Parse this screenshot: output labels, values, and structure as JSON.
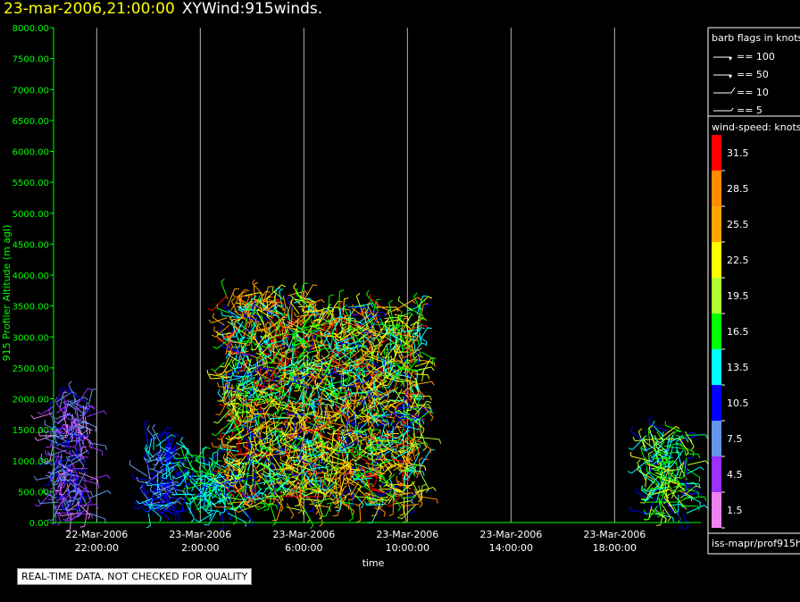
{
  "header": {
    "datetime": "23-mar-2006,21:00:00",
    "product": "XYWind:915winds."
  },
  "disclaimer": "REAL-TIME DATA, NOT CHECKED FOR QUALITY",
  "legend": {
    "barb_title": "barb flags in knots",
    "barbs": [
      {
        "label": "== 100",
        "kind": "flag"
      },
      {
        "label": "== 50",
        "kind": "flag"
      },
      {
        "label": "== 10",
        "kind": "full"
      },
      {
        "label": "== 5",
        "kind": "half"
      }
    ],
    "speed_title": "wind-speed: knots",
    "source": "iss-mapr/prof915h"
  },
  "colors": {
    "axis": "#00ff00",
    "grid": "#b4b4b4",
    "title_date": "#ffff00"
  },
  "chart_data": {
    "type": "scatter",
    "xlabel": "time",
    "ylabel": "915 Profiler Altitude (m agl)",
    "ylim": [
      0,
      8000
    ],
    "xlim_hours_label": "22-Mar-2006 20:20 to 23-Mar-2006 21:20",
    "yticks": [
      "0.00",
      "500.00",
      "1000.00",
      "1500.00",
      "2000.00",
      "2500.00",
      "3000.00",
      "3500.00",
      "4000.00",
      "4500.00",
      "5000.00",
      "5500.00",
      "6000.00",
      "6500.00",
      "7000.00",
      "7500.00",
      "8000.00"
    ],
    "xticks": [
      {
        "date": "22-Mar-2006",
        "time": "22:00:00"
      },
      {
        "date": "23-Mar-2006",
        "time": "2:00:00"
      },
      {
        "date": "23-Mar-2006",
        "time": "6:00:00"
      },
      {
        "date": "23-Mar-2006",
        "time": "10:00:00"
      },
      {
        "date": "23-Mar-2006",
        "time": "14:00:00"
      },
      {
        "date": "23-Mar-2006",
        "time": "18:00:00"
      }
    ],
    "colorbar": [
      {
        "label": "1.5",
        "color": "#ee82ee"
      },
      {
        "label": "4.5",
        "color": "#9b30ff"
      },
      {
        "label": "7.5",
        "color": "#6495ed"
      },
      {
        "label": "10.5",
        "color": "#0000ff"
      },
      {
        "label": "13.5",
        "color": "#00ffff"
      },
      {
        "label": "16.5",
        "color": "#00ff00"
      },
      {
        "label": "19.5",
        "color": "#adff2f"
      },
      {
        "label": "22.5",
        "color": "#ffff00"
      },
      {
        "label": "25.5",
        "color": "#ffa500"
      },
      {
        "label": "28.5",
        "color": "#ff8c00"
      },
      {
        "label": "31.5",
        "color": "#ff0000"
      }
    ],
    "clusters": [
      {
        "start": "22-Mar 20:20",
        "end": "22-Mar 21:40",
        "alt_min": 150,
        "alt_max": 2000,
        "speed_range": [
          1.5,
          10.5
        ]
      },
      {
        "start": "23-Mar 0:00",
        "end": "23-Mar 1:00",
        "alt_min": 150,
        "alt_max": 1350,
        "speed_range": [
          7.5,
          13.5
        ]
      },
      {
        "start": "23-Mar 1:30",
        "end": "23-Mar 3:00",
        "alt_min": 150,
        "alt_max": 1100,
        "speed_range": [
          10.5,
          16.5
        ]
      },
      {
        "start": "23-Mar 3:00",
        "end": "23-Mar 6:00",
        "alt_min": 250,
        "alt_max": 3700,
        "speed_range": [
          10.5,
          31.5
        ]
      },
      {
        "start": "23-Mar 6:00",
        "end": "23-Mar 10:30",
        "alt_min": 300,
        "alt_max": 3500,
        "speed_range": [
          10.5,
          31.5
        ]
      },
      {
        "start": "23-Mar 19:15",
        "end": "23-Mar 20:45",
        "alt_min": 150,
        "alt_max": 1500,
        "speed_range": [
          10.5,
          22.5
        ]
      }
    ]
  }
}
